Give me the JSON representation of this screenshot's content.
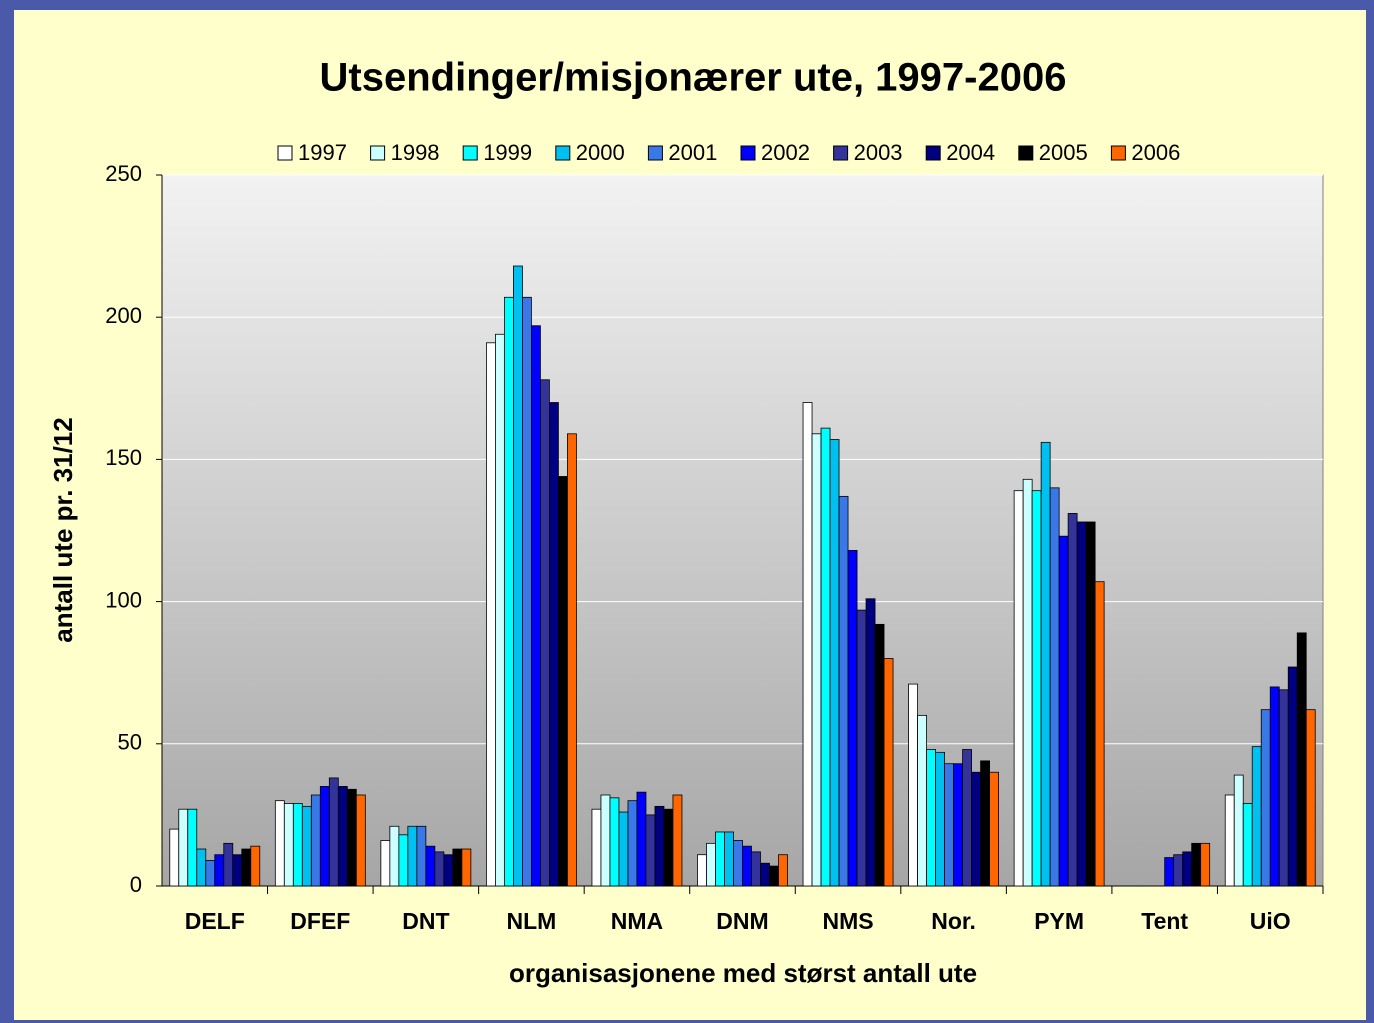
{
  "chart_data": {
    "type": "bar",
    "title": "Utsendinger/misjonærer ute, 1997-2006",
    "xlabel": "organisasjonene med størst antall ute",
    "ylabel": "antall ute pr. 31/12",
    "categories": [
      "DELF",
      "DFEF",
      "DNT",
      "NLM",
      "NMA",
      "DNM",
      "NMS",
      "Nor.",
      "PYM",
      "Tent",
      "UiO"
    ],
    "series": [
      {
        "name": "1997",
        "color": "#ffffff",
        "values": [
          20,
          30,
          16,
          191,
          27,
          11,
          170,
          71,
          139,
          null,
          32
        ]
      },
      {
        "name": "1998",
        "color": "#ccffff",
        "values": [
          27,
          29,
          21,
          194,
          32,
          15,
          159,
          60,
          143,
          null,
          39
        ]
      },
      {
        "name": "1999",
        "color": "#00ffff",
        "values": [
          27,
          29,
          18,
          207,
          31,
          19,
          161,
          48,
          139,
          null,
          29
        ]
      },
      {
        "name": "2000",
        "color": "#00c0f0",
        "values": [
          13,
          28,
          21,
          218,
          26,
          19,
          157,
          47,
          156,
          null,
          49
        ]
      },
      {
        "name": "2001",
        "color": "#3a78e8",
        "values": [
          9,
          32,
          21,
          207,
          30,
          16,
          137,
          43,
          140,
          null,
          62
        ]
      },
      {
        "name": "2002",
        "color": "#0000ff",
        "values": [
          11,
          35,
          14,
          197,
          33,
          14,
          118,
          43,
          123,
          10,
          70
        ]
      },
      {
        "name": "2003",
        "color": "#333399",
        "values": [
          15,
          38,
          12,
          178,
          25,
          12,
          97,
          48,
          131,
          11,
          69
        ]
      },
      {
        "name": "2004",
        "color": "#000080",
        "values": [
          11,
          35,
          11,
          170,
          28,
          8,
          101,
          40,
          128,
          12,
          77
        ]
      },
      {
        "name": "2005",
        "color": "#000000",
        "values": [
          13,
          34,
          13,
          144,
          27,
          7,
          92,
          44,
          128,
          15,
          89
        ]
      },
      {
        "name": "2006",
        "color": "#ff6600",
        "values": [
          14,
          32,
          13,
          159,
          32,
          11,
          80,
          40,
          107,
          15,
          62
        ]
      }
    ],
    "ylim": [
      0,
      250
    ],
    "yticks": [
      0,
      50,
      100,
      150,
      200,
      250
    ],
    "grid": true,
    "legend": "top"
  }
}
